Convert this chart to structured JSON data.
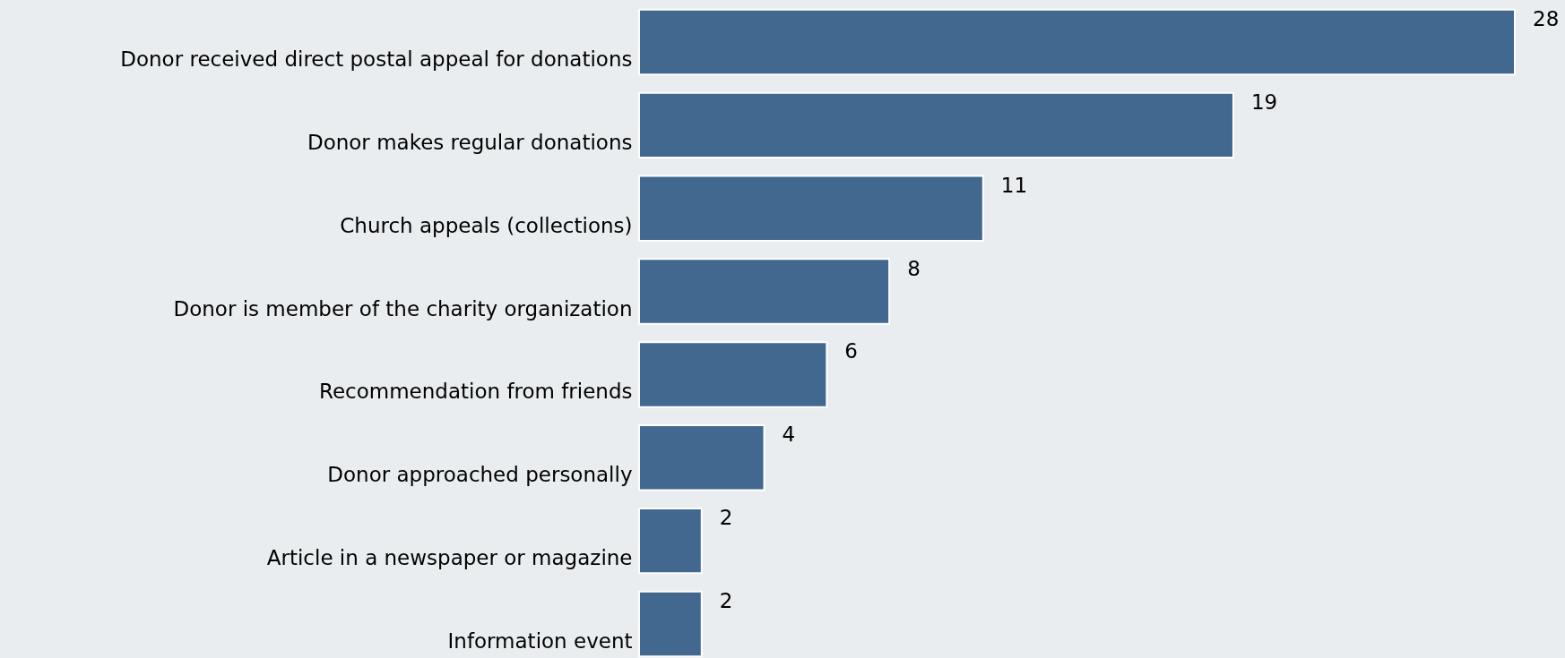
{
  "chart_data": {
    "type": "bar",
    "orientation": "horizontal",
    "categories": [
      "Donor received direct postal appeal for donations",
      "Donor makes regular donations",
      "Church appeals (collections)",
      "Donor is member of the charity organization",
      "Recommendation from friends",
      "Donor approached personally",
      "Article in a newspaper or magazine",
      "Information event"
    ],
    "values": [
      28,
      19,
      11,
      8,
      6,
      4,
      2,
      2
    ],
    "color": "#426890",
    "data_labels": true
  }
}
